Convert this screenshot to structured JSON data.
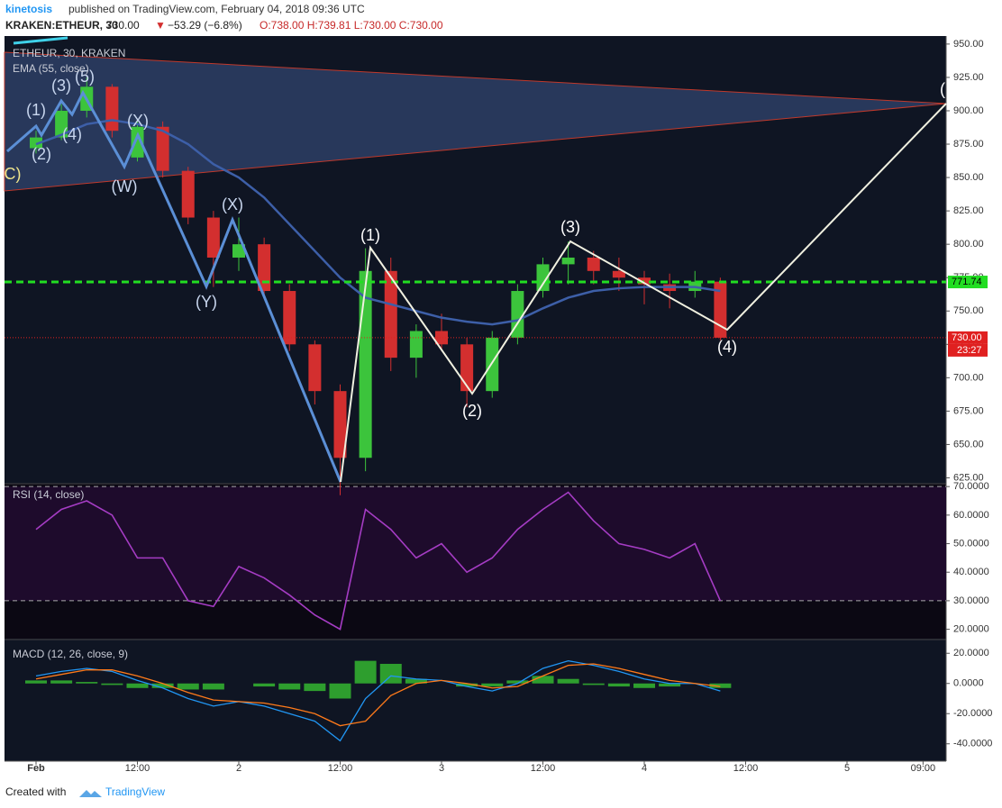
{
  "header": {
    "author": "kinetosis",
    "published": "published on TradingView.com, February 04, 2018 09:36 UTC",
    "symbol": "KRAKEN:ETHEUR, 30",
    "last": "730.00",
    "change": "−53.29 (−6.8%)",
    "ohlc": "O:738.00 H:739.81 L:730.00 C:730.00"
  },
  "wave_labels": [
    "C)",
    "(1)",
    "(2)",
    "(3)",
    "(4)",
    "(5)",
    "(X)",
    "(W)",
    "(X)",
    "(Y)",
    "(1)",
    "(2)",
    "(3)",
    "(4)",
    "("
  ],
  "footer": {
    "created": "Created with",
    "brand": "TradingView"
  },
  "chart_data": [
    {
      "type": "candlestick",
      "title": "ETHEUR, 30, KRAKEN",
      "categories": [
        "Feb",
        null,
        null,
        null,
        "12:00",
        null,
        null,
        null,
        "2",
        null,
        null,
        null,
        "12:00",
        null,
        null,
        null,
        "3",
        null,
        null,
        null,
        "12:00",
        null,
        null,
        null,
        "4",
        null,
        null,
        null,
        "12:00",
        null,
        null,
        null,
        "5",
        null,
        null,
        "09:00"
      ],
      "open": [
        872,
        880,
        900,
        918,
        865,
        888,
        855,
        820,
        790,
        800,
        765,
        725,
        690,
        640,
        780,
        715,
        735,
        725,
        690,
        730,
        765,
        785,
        790,
        780,
        775,
        770,
        765,
        772,
        null,
        null,
        null,
        null,
        null,
        null,
        null,
        null
      ],
      "high": [
        885,
        905,
        925,
        920,
        892,
        892,
        858,
        825,
        820,
        805,
        770,
        728,
        695,
        797,
        790,
        740,
        748,
        730,
        735,
        770,
        790,
        802,
        795,
        790,
        780,
        778,
        780,
        775,
        null,
        null,
        null,
        null,
        null,
        null,
        null,
        null
      ],
      "low": [
        868,
        878,
        895,
        880,
        862,
        850,
        815,
        768,
        780,
        760,
        720,
        680,
        612,
        630,
        705,
        700,
        720,
        678,
        685,
        725,
        760,
        770,
        770,
        765,
        755,
        752,
        760,
        728,
        null,
        null,
        null,
        null,
        null,
        null,
        null,
        null
      ],
      "close": [
        880,
        900,
        918,
        885,
        888,
        855,
        820,
        790,
        800,
        765,
        725,
        690,
        640,
        780,
        715,
        735,
        725,
        690,
        730,
        765,
        785,
        790,
        780,
        775,
        770,
        765,
        772,
        730,
        null,
        null,
        null,
        null,
        null,
        null,
        null,
        null
      ],
      "up_color": "#3cc43c",
      "down_color": "#d32f2f",
      "series": [
        {
          "name": "EMA (55, close)",
          "color": "#3d5fa8",
          "values": [
            875,
            882,
            890,
            893,
            890,
            885,
            875,
            860,
            850,
            835,
            815,
            795,
            775,
            760,
            755,
            750,
            745,
            742,
            740,
            743,
            752,
            760,
            765,
            767,
            768,
            768,
            768,
            765,
            null,
            null,
            null,
            null,
            null,
            null,
            null,
            null
          ]
        }
      ],
      "price_lines": [
        {
          "value": 771.74,
          "label": "771.74",
          "color": "#22dd22"
        },
        {
          "value": 730,
          "label": "730.00",
          "color": "#e02020"
        }
      ],
      "countdown": "23:27",
      "ylim": [
        620.6,
        956
      ],
      "yticks": [
        {
          "value": 625,
          "label": "625.00"
        },
        {
          "value": 650,
          "label": "650.00"
        },
        {
          "value": 675,
          "label": "675.00"
        },
        {
          "value": 700,
          "label": "700.00"
        },
        {
          "value": 725,
          "label": "725.00"
        },
        {
          "value": 750,
          "label": "750.00"
        },
        {
          "value": 775,
          "label": "775.00"
        },
        {
          "value": 800,
          "label": "800.00"
        },
        {
          "value": 825,
          "label": "825.00"
        },
        {
          "value": 850,
          "label": "850.00"
        },
        {
          "value": 875,
          "label": "875.00"
        },
        {
          "value": 900,
          "label": "900.00"
        },
        {
          "value": 925,
          "label": "925.00"
        },
        {
          "value": 950,
          "label": "950.00"
        }
      ]
    },
    {
      "type": "line",
      "title": "RSI (14, close)",
      "series": [
        {
          "name": "RSI",
          "color": "#a53cc4",
          "values": [
            55,
            62,
            65,
            60,
            45,
            45,
            30,
            28,
            42,
            38,
            32,
            25,
            20,
            62,
            55,
            45,
            50,
            40,
            45,
            55,
            62,
            68,
            58,
            50,
            48,
            45,
            50,
            30,
            null,
            null,
            null,
            null,
            null,
            null,
            null,
            null
          ]
        }
      ],
      "levels": [
        30,
        70
      ],
      "band_color": "#1e0b2c",
      "ylim": [
        16.4,
        71
      ],
      "yticks": [
        {
          "value": 20,
          "label": "20.0000"
        },
        {
          "value": 30,
          "label": "30.0000"
        },
        {
          "value": 40,
          "label": "40.0000"
        },
        {
          "value": 50,
          "label": "50.0000"
        },
        {
          "value": 60,
          "label": "60.0000"
        },
        {
          "value": 70,
          "label": "70.0000"
        }
      ]
    },
    {
      "type": "macd",
      "title": "MACD (12, 26, close, 9)",
      "series": [
        {
          "name": "MACD",
          "color": "#2196f3",
          "values": [
            5,
            8,
            10,
            8,
            2,
            -3,
            -10,
            -15,
            -12,
            -15,
            -20,
            -25,
            -38,
            -10,
            5,
            3,
            2,
            -2,
            -5,
            0,
            10,
            15,
            12,
            8,
            3,
            0,
            0,
            -5,
            null,
            null,
            null,
            null,
            null,
            null,
            null,
            null
          ]
        },
        {
          "name": "Signal",
          "color": "#ff7a1a",
          "values": [
            3,
            6,
            9,
            9,
            5,
            0,
            -6,
            -11,
            -12,
            -13,
            -16,
            -20,
            -28,
            -25,
            -8,
            0,
            2,
            0,
            -3,
            -2,
            5,
            12,
            13,
            10,
            6,
            2,
            0,
            -2,
            null,
            null,
            null,
            null,
            null,
            null,
            null,
            null
          ]
        },
        {
          "name": "Histogram",
          "color": "#2e9e2e",
          "values": [
            2,
            2,
            1,
            -1,
            -3,
            -3,
            -4,
            -4,
            0,
            -2,
            -4,
            -5,
            -10,
            15,
            13,
            3,
            0,
            -2,
            -2,
            2,
            5,
            3,
            -1,
            -2,
            -3,
            -2,
            0,
            -3,
            null,
            null,
            null,
            null,
            null,
            null,
            null,
            null
          ]
        }
      ],
      "ylim": [
        -51.5,
        29.1
      ],
      "yticks": [
        {
          "value": -40,
          "label": "-40.0000"
        },
        {
          "value": -20,
          "label": "-20.0000"
        },
        {
          "value": 0,
          "label": "0.0000"
        },
        {
          "value": 20,
          "label": "20.0000"
        }
      ]
    }
  ]
}
